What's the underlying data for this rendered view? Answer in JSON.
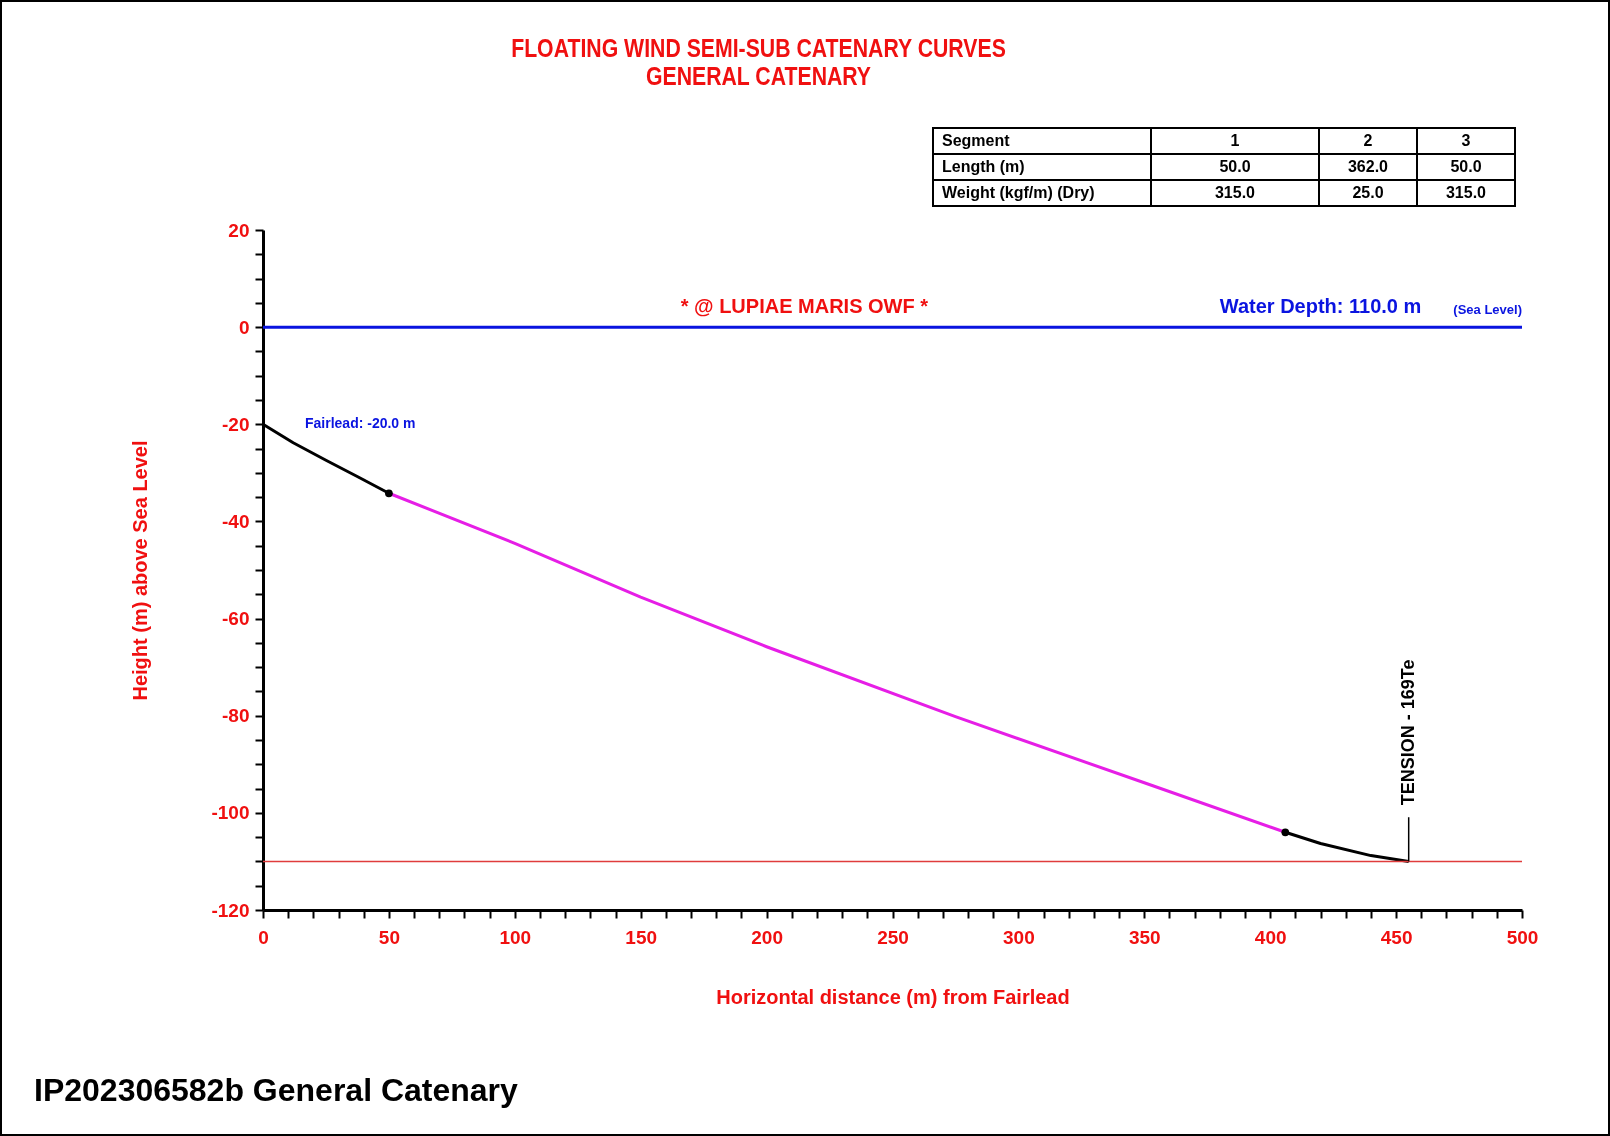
{
  "chart_data": {
    "type": "line",
    "title": "FLOATING WIND SEMI-SUB CATENARY CURVES",
    "subtitle": "GENERAL CATENARY",
    "xlabel": "Horizontal distance (m) from Fairlead",
    "ylabel": "Height (m) above Sea Level",
    "xlim": [
      0,
      500
    ],
    "ylim": [
      -120,
      20
    ],
    "xticks": [
      0,
      {
        "value": 10,
        "label": null
      },
      {
        "value": 20,
        "label": null
      },
      {
        "value": 30,
        "label": null
      },
      {
        "value": 40,
        "label": null
      },
      50,
      {
        "value": 60,
        "label": null
      },
      {
        "value": 70,
        "label": null
      },
      {
        "value": 80,
        "label": null
      },
      {
        "value": 90,
        "label": null
      },
      100,
      {
        "value": 110,
        "label": null
      },
      {
        "value": 120,
        "label": null
      },
      {
        "value": 130,
        "label": null
      },
      {
        "value": 140,
        "label": null
      },
      150,
      {
        "value": 160,
        "label": null
      },
      {
        "value": 170,
        "label": null
      },
      {
        "value": 180,
        "label": null
      },
      {
        "value": 190,
        "label": null
      },
      200,
      {
        "value": 210,
        "label": null
      },
      {
        "value": 220,
        "label": null
      },
      {
        "value": 230,
        "label": null
      },
      {
        "value": 240,
        "label": null
      },
      250,
      {
        "value": 260,
        "label": null
      },
      {
        "value": 270,
        "label": null
      },
      {
        "value": 280,
        "label": null
      },
      {
        "value": 290,
        "label": null
      },
      300,
      {
        "value": 310,
        "label": null
      },
      {
        "value": 320,
        "label": null
      },
      {
        "value": 330,
        "label": null
      },
      {
        "value": 340,
        "label": null
      },
      350,
      {
        "value": 360,
        "label": null
      },
      {
        "value": 370,
        "label": null
      },
      {
        "value": 380,
        "label": null
      },
      {
        "value": 390,
        "label": null
      },
      400,
      {
        "value": 410,
        "label": null
      },
      {
        "value": 420,
        "label": null
      },
      {
        "value": 430,
        "label": null
      },
      {
        "value": 440,
        "label": null
      },
      450,
      {
        "value": 460,
        "label": null
      },
      {
        "value": 470,
        "label": null
      },
      {
        "value": 480,
        "label": null
      },
      {
        "value": 490,
        "label": null
      },
      500
    ],
    "yticks": [
      -120,
      {
        "value": -115,
        "label": null
      },
      {
        "value": -110,
        "label": null
      },
      {
        "value": -105,
        "label": null
      },
      -100,
      {
        "value": -95,
        "label": null
      },
      {
        "value": -90,
        "label": null
      },
      {
        "value": -85,
        "label": null
      },
      -80,
      {
        "value": -75,
        "label": null
      },
      {
        "value": -70,
        "label": null
      },
      {
        "value": -65,
        "label": null
      },
      -60,
      {
        "value": -55,
        "label": null
      },
      {
        "value": -50,
        "label": null
      },
      {
        "value": -45,
        "label": null
      },
      -40,
      {
        "value": -35,
        "label": null
      },
      {
        "value": -30,
        "label": null
      },
      {
        "value": -25,
        "label": null
      },
      -20,
      {
        "value": -15,
        "label": null
      },
      {
        "value": -10,
        "label": null
      },
      {
        "value": -5,
        "label": null
      },
      0,
      {
        "value": 5,
        "label": null
      },
      {
        "value": 10,
        "label": null
      },
      {
        "value": 15,
        "label": null
      },
      20
    ],
    "grid": false,
    "series": [
      {
        "color": "#000000",
        "x": [
          0,
          12,
          25,
          38,
          50
        ],
        "values": [
          -20,
          -23.8,
          -27.4,
          -30.9,
          -34.2
        ]
      },
      {
        "color": "#e61ee6",
        "x": [
          50,
          100,
          150,
          200,
          275,
          350,
          406
        ],
        "values": [
          -34.2,
          -44.5,
          -55.6,
          -65.8,
          -80.2,
          -93.8,
          -104
        ]
      },
      {
        "color": "#000000",
        "x": [
          406,
          420,
          440,
          455
        ],
        "values": [
          -104,
          -106.3,
          -108.8,
          -110
        ]
      },
      {
        "type": "scatter",
        "color": "#000000",
        "marker": "circle",
        "x": [
          50,
          406
        ],
        "values": [
          -34.2,
          -104
        ]
      }
    ],
    "ref_lines": [
      {
        "axis": "y",
        "value": 0,
        "label": "(Sea Level)",
        "color": "#0a14e0"
      },
      {
        "axis": "y",
        "value": -110,
        "color": "#e03c3c"
      }
    ],
    "annotations": [
      {
        "text": "* @ LUPIAE MARIS OWF *",
        "x": 215,
        "y": 0
      },
      {
        "text": "Water Depth: 110.0 m",
        "x": 420,
        "y": 0
      },
      {
        "text": "Fairlead: -20.0 m",
        "x": 0,
        "y": -20
      },
      {
        "text": "TENSION - 169Te",
        "x": 455,
        "y": -110
      },
      "Segment",
      "1",
      "2",
      "3",
      "Length (m)",
      "50.0",
      "362.0",
      "50.0",
      "Weight (kgf/m) (Dry)",
      "315.0",
      "25.0",
      "315.0",
      "IP202306582b General Catenary"
    ]
  }
}
